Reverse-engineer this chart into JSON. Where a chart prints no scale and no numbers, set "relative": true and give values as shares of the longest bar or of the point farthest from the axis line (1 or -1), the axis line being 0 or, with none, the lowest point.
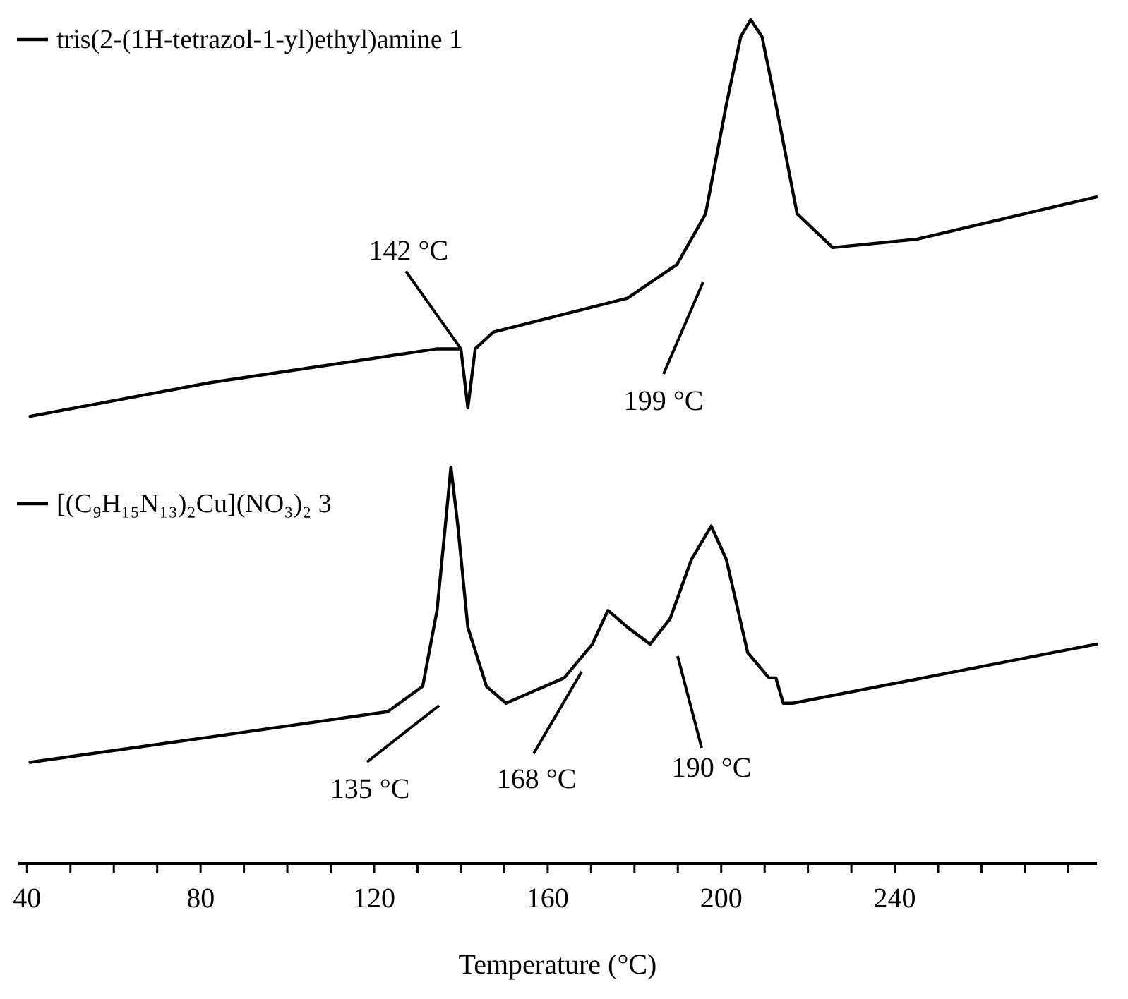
{
  "chart_data": {
    "type": "line",
    "relative": true,
    "xlabel": "Temperature (°C)",
    "xlim": [
      38,
      286.6
    ],
    "xticks": [
      40,
      {
        "value": 50,
        "label": null
      },
      {
        "value": 60,
        "label": null
      },
      {
        "value": 70,
        "label": null
      },
      80,
      {
        "value": 90,
        "label": null
      },
      {
        "value": 100,
        "label": null
      },
      {
        "value": 110,
        "label": null
      },
      120,
      {
        "value": 130,
        "label": null
      },
      {
        "value": 140,
        "label": null
      },
      {
        "value": 150,
        "label": null
      },
      160,
      {
        "value": 170,
        "label": null
      },
      {
        "value": 180,
        "label": null
      },
      {
        "value": 190,
        "label": null
      },
      200,
      {
        "value": 210,
        "label": null
      },
      {
        "value": 220,
        "label": null
      },
      {
        "value": 230,
        "label": null
      },
      240,
      {
        "value": 250,
        "label": null
      },
      {
        "value": 260,
        "label": null
      },
      {
        "value": 270,
        "label": null
      },
      {
        "value": 280,
        "label": null
      }
    ],
    "grid": false,
    "legend": "top left",
    "marker": "none",
    "line_style": "solid",
    "series": [
      {
        "name": "tris(2-(1H-tetrazol-1-yl)ethyl)amine 1",
        "color": "#000000",
        "x": [
          40.7,
          82.3,
          134.5,
          137.7,
          140.0,
          141.6,
          143.3,
          147.5,
          178.4,
          189.8,
          196.4,
          201.2,
          204.5,
          206.8,
          209.4,
          212.6,
          217.5,
          225.7,
          245.2,
          286.5
        ],
        "values": [
          0.53,
          0.57,
          0.61,
          0.61,
          0.61,
          0.54,
          0.61,
          0.63,
          0.67,
          0.71,
          0.77,
          0.9,
          0.98,
          1,
          0.98,
          0.9,
          0.77,
          0.73,
          0.74,
          0.79
        ]
      },
      {
        "name": "[(C₉H₁₅N₁₃)₂Cu](NO₃)₂ 3",
        "color": "#000000",
        "x": [
          40.7,
          82.3,
          123.1,
          131.2,
          134.5,
          136.4,
          137.7,
          139.3,
          141.6,
          145.9,
          150.4,
          163.8,
          170.3,
          173.9,
          178.4,
          183.6,
          188.2,
          193.1,
          197.7,
          201.2,
          206.1,
          211.0,
          212.6,
          214.3,
          216.5,
          286.5
        ],
        "values": [
          0.12,
          0.15,
          0.18,
          0.21,
          0.3,
          0.4,
          0.47,
          0.4,
          0.28,
          0.21,
          0.19,
          0.22,
          0.26,
          0.3,
          0.28,
          0.26,
          0.29,
          0.36,
          0.4,
          0.36,
          0.25,
          0.22,
          0.22,
          0.19,
          0.19,
          0.26
        ]
      }
    ],
    "annotations": [
      {
        "text": "142 °C",
        "x": 140.0,
        "y": 0.61
      },
      "199 °C",
      "135 °C",
      "168 °C",
      "190 °C"
    ]
  }
}
